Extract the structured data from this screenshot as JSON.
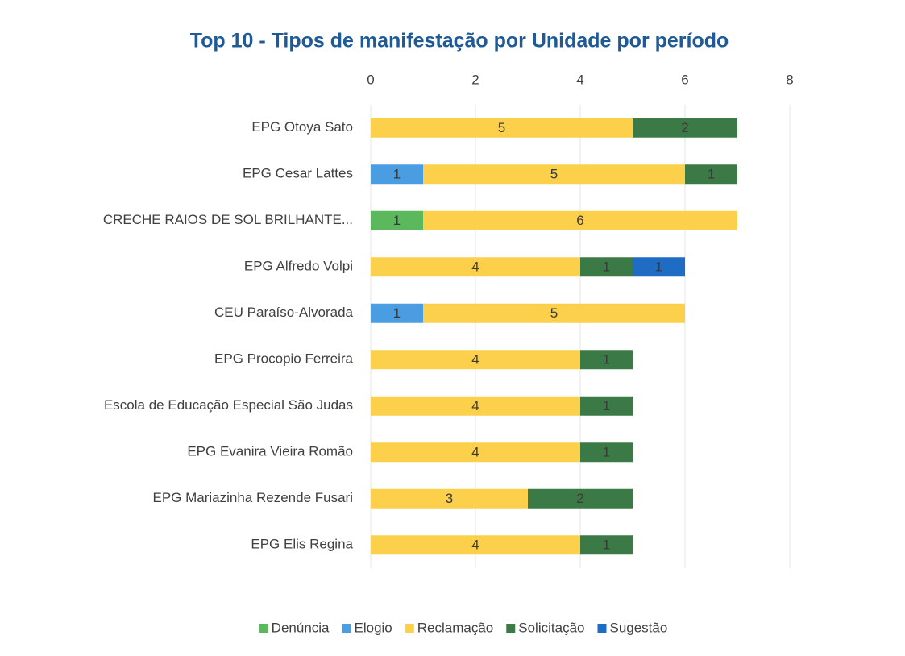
{
  "chart_data": {
    "type": "stacked-bar-horizontal",
    "title": "Top 10 - Tipos de manifestação por Unidade por período",
    "categories": [
      "EPG Otoya Sato",
      "EPG Cesar Lattes",
      "CRECHE RAIOS DE SOL BRILHANTE...",
      "EPG Alfredo Volpi",
      "CEU Paraíso-Alvorada",
      "EPG Procopio Ferreira",
      "Escola de Educação Especial São Judas",
      "EPG Evanira Vieira Romão",
      "EPG Mariazinha Rezende Fusari",
      "EPG Elis Regina"
    ],
    "series": [
      {
        "name": "Denúncia",
        "color": "#5cb85c",
        "values": [
          null,
          null,
          1,
          null,
          null,
          null,
          null,
          null,
          null,
          null
        ]
      },
      {
        "name": "Elogio",
        "color": "#4a9de0",
        "values": [
          null,
          1,
          null,
          null,
          1,
          null,
          null,
          null,
          null,
          null
        ]
      },
      {
        "name": "Reclamação",
        "color": "#fcd04b",
        "values": [
          5,
          5,
          6,
          4,
          5,
          4,
          4,
          4,
          3,
          4
        ]
      },
      {
        "name": "Solicitação",
        "color": "#3b7a47",
        "values": [
          2,
          1,
          null,
          1,
          null,
          1,
          1,
          1,
          2,
          1
        ]
      },
      {
        "name": "Sugestão",
        "color": "#1f6cc4",
        "values": [
          null,
          null,
          null,
          1,
          null,
          null,
          null,
          null,
          null,
          null
        ]
      }
    ],
    "xlim": [
      0,
      8
    ],
    "xticks": [
      0,
      2,
      4,
      6,
      8
    ],
    "grid": true,
    "legend": "bottom"
  }
}
